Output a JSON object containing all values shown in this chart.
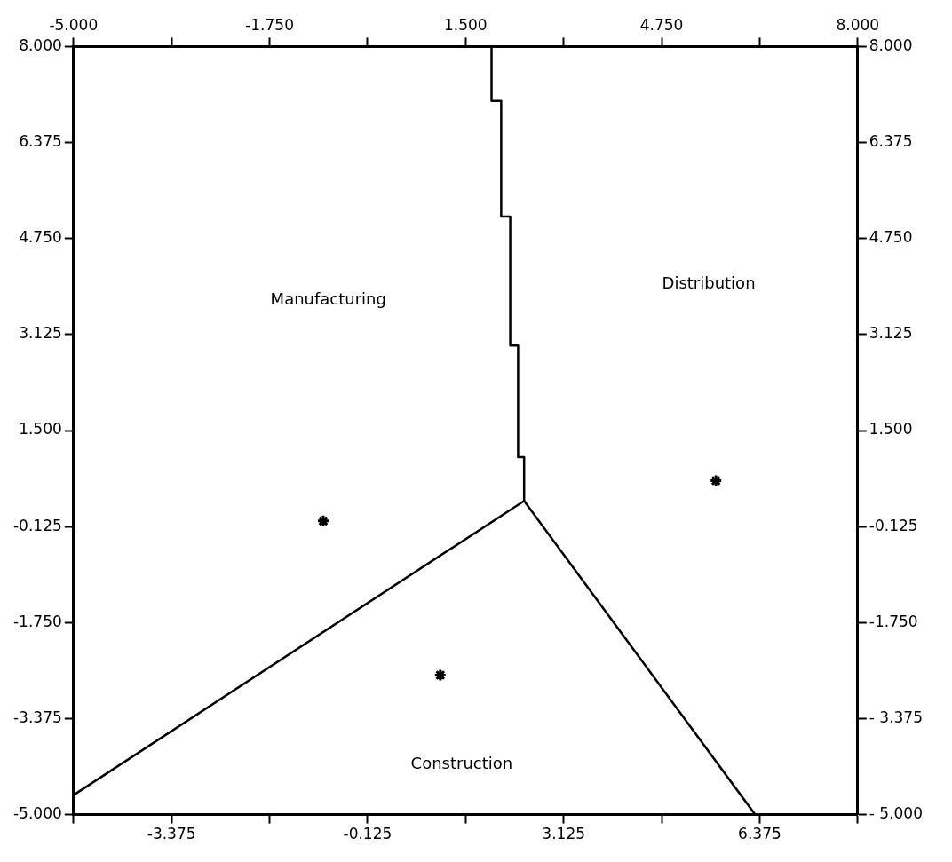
{
  "chart_data": {
    "type": "scatter",
    "line_style": "solid",
    "grid": false,
    "legend": false,
    "xlim": [
      -5,
      8
    ],
    "ylim": [
      -5,
      8
    ],
    "x2lim": [
      -5,
      8
    ],
    "y2lim": [
      -5,
      8
    ],
    "xticks": [
      {
        "value": -5,
        "label": null
      },
      {
        "value": -3.375,
        "label": "-3.375"
      },
      {
        "value": -1.75,
        "label": null
      },
      {
        "value": -0.125,
        "label": "-0.125"
      },
      {
        "value": 1.5,
        "label": null
      },
      {
        "value": 3.125,
        "label": "3.125"
      },
      {
        "value": 4.75,
        "label": null
      },
      {
        "value": 6.375,
        "label": "6.375"
      },
      {
        "value": 8,
        "label": null
      }
    ],
    "x2ticks": [
      {
        "value": -5,
        "label": "-5.000"
      },
      {
        "value": -3.375,
        "label": null
      },
      {
        "value": -1.75,
        "label": "-1.750"
      },
      {
        "value": -0.125,
        "label": null
      },
      {
        "value": 1.5,
        "label": "1.500"
      },
      {
        "value": 3.125,
        "label": null
      },
      {
        "value": 4.75,
        "label": "4.750"
      },
      {
        "value": 6.375,
        "label": null
      },
      {
        "value": 8,
        "label": "8.000"
      }
    ],
    "yticks": [
      {
        "value": 8,
        "label": "8.000"
      },
      {
        "value": 6.375,
        "label": "6.375"
      },
      {
        "value": 4.75,
        "label": "4.750"
      },
      {
        "value": 3.125,
        "label": "3.125"
      },
      {
        "value": 1.5,
        "label": "1.500"
      },
      {
        "value": -0.125,
        "label": "-0.125"
      },
      {
        "value": -1.75,
        "label": "-1.750"
      },
      {
        "value": -3.375,
        "label": "-3.375"
      },
      {
        "value": -5,
        "label": "-5.000"
      }
    ],
    "y2ticks": [
      {
        "value": 8,
        "label": "8.000"
      },
      {
        "value": 6.375,
        "label": "6.375"
      },
      {
        "value": 4.75,
        "label": "4.750"
      },
      {
        "value": 3.125,
        "label": "3.125"
      },
      {
        "value": 1.5,
        "label": "1.500"
      },
      {
        "value": -0.125,
        "label": "-0.125"
      },
      {
        "value": -1.75,
        "label": "-1.750"
      },
      {
        "value": -3.375,
        "label": "- 3.375"
      },
      {
        "value": -5,
        "label": "- 5.000"
      }
    ],
    "series": [
      {
        "marker": "cross",
        "color": "#000000",
        "x": [
          -0.86,
          1.08,
          5.65
        ],
        "values": [
          -0.03,
          -2.64,
          0.65
        ]
      },
      {
        "type": "line",
        "color": "#000000",
        "x": [
          1.93,
          1.93,
          2.09,
          2.09,
          2.24,
          2.24,
          2.37,
          2.37,
          2.47,
          2.47
        ],
        "values": [
          8,
          7.08,
          7.08,
          5.12,
          5.12,
          2.94,
          2.94,
          1.05,
          1.05,
          0.31
        ]
      },
      {
        "type": "line",
        "color": "#000000",
        "x": [
          -5,
          2.47
        ],
        "values": [
          -4.67,
          0.31
        ]
      },
      {
        "type": "line",
        "color": "#000000",
        "x": [
          2.47,
          6.3
        ],
        "values": [
          0.31,
          -5
        ]
      }
    ],
    "annotations": [
      "Manufacturing",
      "Distribution",
      "Construction"
    ]
  }
}
